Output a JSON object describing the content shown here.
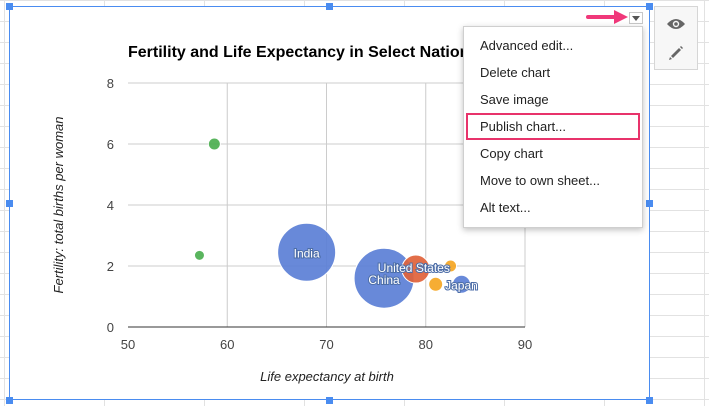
{
  "chart_data": {
    "type": "bubble",
    "title": "Fertility and Life Expectancy in Select Nations",
    "xlabel": "Life expectancy at birth",
    "ylabel": "Fertility: total births per woman",
    "xlim": [
      50,
      90
    ],
    "ylim": [
      0,
      8
    ],
    "xticks": [
      50,
      60,
      70,
      80,
      90
    ],
    "yticks": [
      0,
      2,
      4,
      6,
      8
    ],
    "grid": true,
    "points": [
      {
        "x": 58.7,
        "y": 6.0,
        "size": 6,
        "color": "#4caf50",
        "label": ""
      },
      {
        "x": 57.2,
        "y": 2.35,
        "size": 5,
        "color": "#4caf50",
        "label": ""
      },
      {
        "x": 68.0,
        "y": 2.45,
        "size": 29,
        "color": "#5b7fd6",
        "label": "India"
      },
      {
        "x": 75.8,
        "y": 1.6,
        "size": 30,
        "color": "#5b7fd6",
        "label": "China"
      },
      {
        "x": 79.0,
        "y": 1.9,
        "size": 14,
        "color": "#e0623a",
        "label": "United States"
      },
      {
        "x": 82.5,
        "y": 2.0,
        "size": 6,
        "color": "#f5a623",
        "label": ""
      },
      {
        "x": 81.0,
        "y": 1.4,
        "size": 7,
        "color": "#f5a623",
        "label": ""
      },
      {
        "x": 83.6,
        "y": 1.4,
        "size": 9,
        "color": "#5b7fd6",
        "label": "Japan"
      }
    ]
  },
  "menu": {
    "items": [
      "Advanced edit...",
      "Delete chart",
      "Save image",
      "Publish chart...",
      "Copy chart",
      "Move to own sheet...",
      "Alt text..."
    ],
    "highlight_color": "#e8336b"
  },
  "tools": {
    "view_icon": "eye-icon",
    "edit_icon": "pencil-icon"
  },
  "colors": {
    "selection": "#4a8cf0",
    "pointer": "#f0387a"
  }
}
